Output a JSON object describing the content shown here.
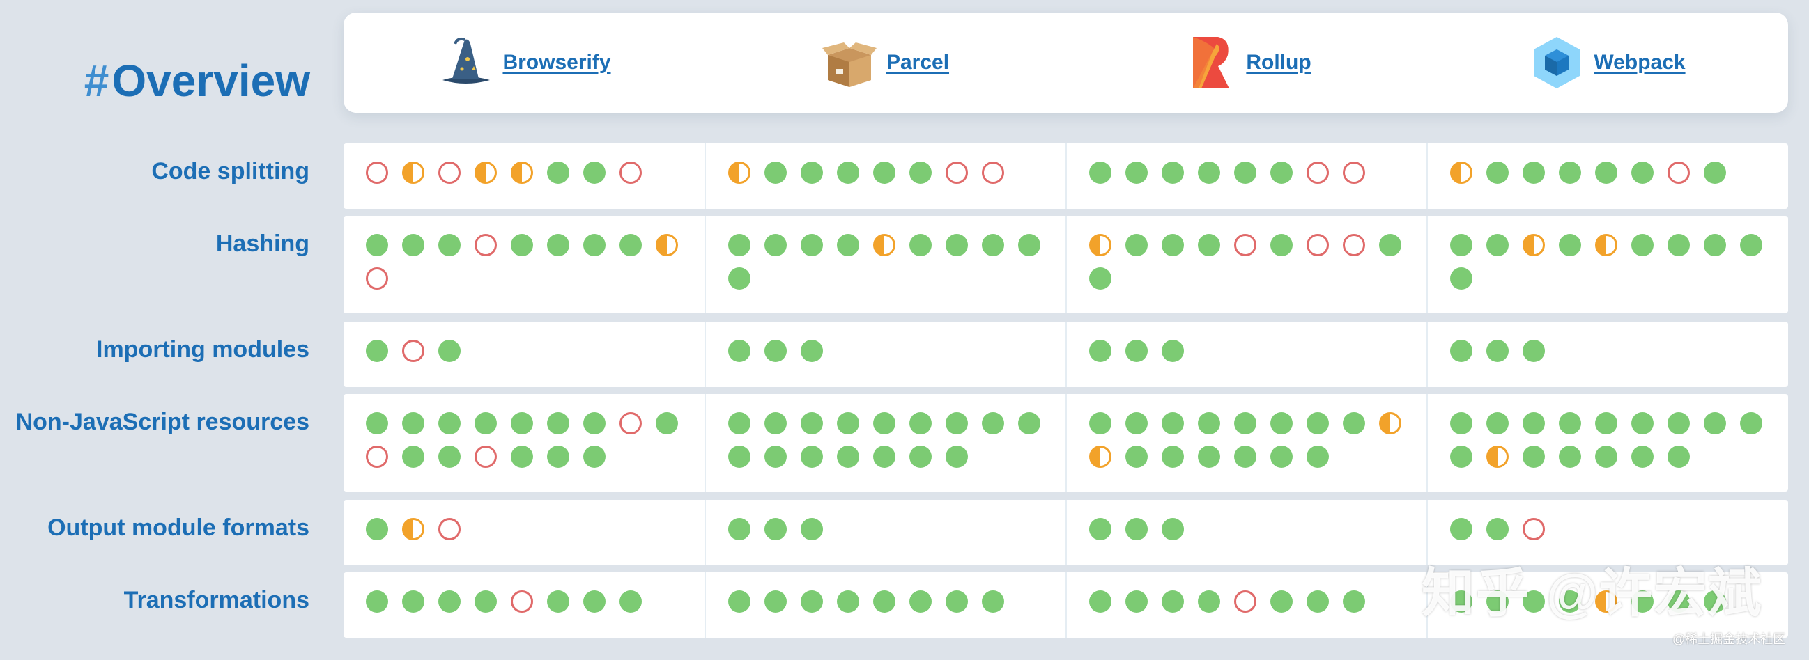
{
  "overview": {
    "hash": "#",
    "title": "Overview"
  },
  "tools": [
    {
      "name": "Browserify",
      "icon": "wizard-hat-icon"
    },
    {
      "name": "Parcel",
      "icon": "cardboard-box-icon"
    },
    {
      "name": "Rollup",
      "icon": "rollup-logo-icon"
    },
    {
      "name": "Webpack",
      "icon": "webpack-cube-icon"
    }
  ],
  "legend_colors": {
    "full": "#7ccb73",
    "partial": "#f2a22a",
    "none": "#e06a6a"
  },
  "rows": [
    {
      "label": "Code splitting",
      "cells": [
        [
          "none",
          "partial",
          "none",
          "partial",
          "partial",
          "full",
          "full",
          "none"
        ],
        [
          "partial",
          "full",
          "full",
          "full",
          "full",
          "full",
          "none",
          "none"
        ],
        [
          "full",
          "full",
          "full",
          "full",
          "full",
          "full",
          "none",
          "none"
        ],
        [
          "partial",
          "full",
          "full",
          "full",
          "full",
          "full",
          "none",
          "full"
        ]
      ]
    },
    {
      "label": "Hashing",
      "cells": [
        [
          "full",
          "full",
          "full",
          "none",
          "full",
          "full",
          "full",
          "full",
          "partial",
          "none"
        ],
        [
          "full",
          "full",
          "full",
          "full",
          "partial",
          "full",
          "full",
          "full",
          "full",
          "full"
        ],
        [
          "partial",
          "full",
          "full",
          "full",
          "none",
          "full",
          "none",
          "none",
          "full",
          "full"
        ],
        [
          "full",
          "full",
          "partial",
          "full",
          "partial",
          "full",
          "full",
          "full",
          "full",
          "full"
        ]
      ]
    },
    {
      "label": "Importing modules",
      "cells": [
        [
          "full",
          "none",
          "full"
        ],
        [
          "full",
          "full",
          "full"
        ],
        [
          "full",
          "full",
          "full"
        ],
        [
          "full",
          "full",
          "full"
        ]
      ]
    },
    {
      "label": "Non-JavaScript resources",
      "cells": [
        [
          "full",
          "full",
          "full",
          "full",
          "full",
          "full",
          "full",
          "none",
          "full",
          "none",
          "full",
          "full",
          "none",
          "full",
          "full",
          "full"
        ],
        [
          "full",
          "full",
          "full",
          "full",
          "full",
          "full",
          "full",
          "full",
          "full",
          "full",
          "full",
          "full",
          "full",
          "full",
          "full",
          "full"
        ],
        [
          "full",
          "full",
          "full",
          "full",
          "full",
          "full",
          "full",
          "full",
          "partial",
          "partial",
          "full",
          "full",
          "full",
          "full",
          "full",
          "full"
        ],
        [
          "full",
          "full",
          "full",
          "full",
          "full",
          "full",
          "full",
          "full",
          "full",
          "full",
          "partial",
          "full",
          "full",
          "full",
          "full",
          "full"
        ]
      ]
    },
    {
      "label": "Output module formats",
      "cells": [
        [
          "full",
          "partial",
          "none"
        ],
        [
          "full",
          "full",
          "full"
        ],
        [
          "full",
          "full",
          "full"
        ],
        [
          "full",
          "full",
          "none"
        ]
      ]
    },
    {
      "label": "Transformations",
      "cells": [
        [
          "full",
          "full",
          "full",
          "full",
          "none",
          "full",
          "full",
          "full"
        ],
        [
          "full",
          "full",
          "full",
          "full",
          "full",
          "full",
          "full",
          "full"
        ],
        [
          "full",
          "full",
          "full",
          "full",
          "none",
          "full",
          "full",
          "full"
        ],
        [
          "full",
          "full",
          "full",
          "full",
          "partial",
          "full",
          "full",
          "full"
        ]
      ]
    }
  ],
  "watermark": {
    "main": "知乎 @许宏斌",
    "small": "@稀土掘金技术社区"
  }
}
